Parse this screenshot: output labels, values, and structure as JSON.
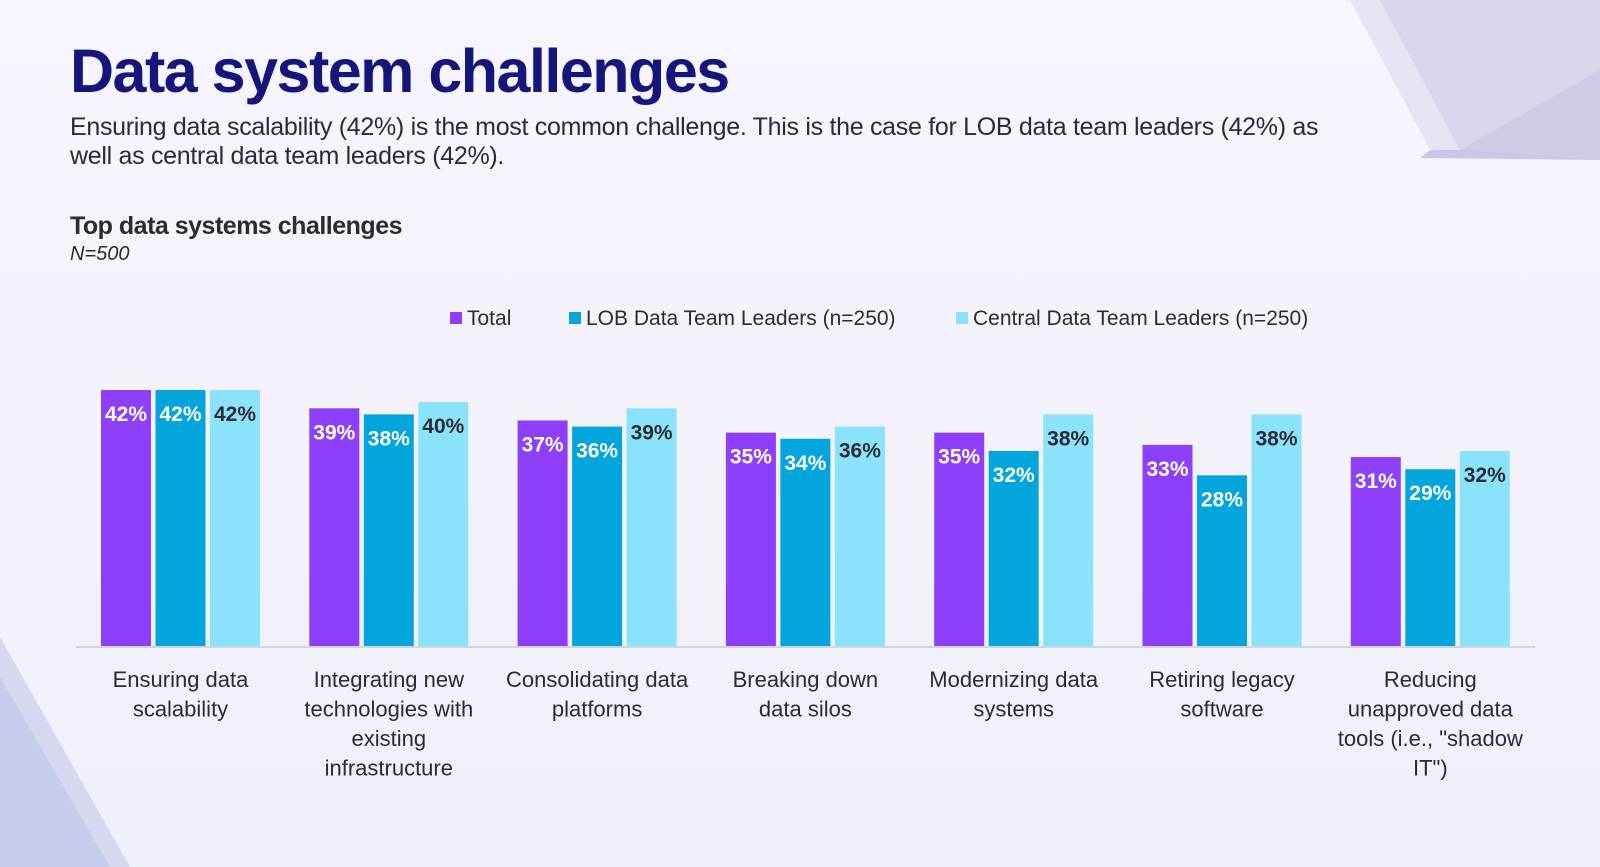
{
  "title": "Data system challenges",
  "subtitle": "Ensuring data scalability (42%) is the most common challenge. This is the case for LOB data team leaders (42%) as well as central data team leaders (42%).",
  "chart_data": {
    "type": "bar",
    "title": "Top data systems challenges",
    "sample_size": "N=500",
    "categories": [
      [
        "Ensuring data",
        "scalability"
      ],
      [
        "Integrating new",
        "technologies with",
        "existing",
        "infrastructure"
      ],
      [
        "Consolidating data",
        "platforms"
      ],
      [
        "Breaking down",
        "data silos"
      ],
      [
        "Modernizing data",
        "systems"
      ],
      [
        "Retiring legacy",
        "software"
      ],
      [
        "Reducing",
        "unapproved data",
        "tools (i.e., \"shadow",
        "IT\")"
      ]
    ],
    "series": [
      {
        "name": "Total",
        "color": "#8d3ffb",
        "label_color": "#ffffff",
        "values": [
          42,
          39,
          37,
          35,
          35,
          33,
          31
        ],
        "labels": [
          "42%",
          "39%",
          "37%",
          "35%",
          "35%",
          "33%",
          "31%"
        ]
      },
      {
        "name": "LOB Data Team Leaders (n=250)",
        "color": "#03a6dc",
        "label_color": "#ffffff",
        "values": [
          42,
          38,
          36,
          34,
          32,
          28,
          29
        ],
        "labels": [
          "42%",
          "38%",
          "36%",
          "34%",
          "32%",
          "28%",
          "29%"
        ]
      },
      {
        "name": "Central Data Team Leaders (n=250)",
        "color": "#8be3fb",
        "label_color": "#2b2b35",
        "values": [
          42,
          40,
          39,
          36,
          38,
          38,
          32
        ],
        "labels": [
          "42%",
          "40%",
          "39%",
          "36%",
          "38%",
          "38%",
          "32%"
        ]
      }
    ],
    "xlabel": "",
    "ylabel": "",
    "ylim": [
      0,
      42
    ],
    "legend_position": "top-center",
    "grid": false
  }
}
